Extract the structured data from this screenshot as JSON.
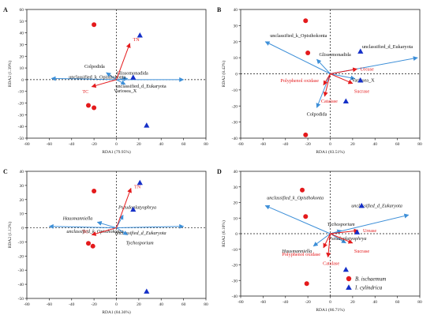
{
  "chart_data": [
    {
      "type": "scatter",
      "panel_label": "A",
      "xlabel": "RDA1 (79.95%)",
      "ylabel": "RDA2 (1.39%)",
      "xlim": [
        -80,
        80
      ],
      "ylim": [
        -50,
        60
      ],
      "xticks": [
        -80,
        -60,
        -40,
        -20,
        0,
        20,
        40,
        60,
        80
      ],
      "yticks": [
        -50,
        -40,
        -30,
        -20,
        -10,
        0,
        10,
        20,
        30,
        40,
        50,
        60
      ],
      "italic_species": false,
      "species_arrows": [
        {
          "label": "Colpodida",
          "x": -9,
          "y": 6
        },
        {
          "label": "Glissomonadida",
          "x": 10,
          "y": 1
        },
        {
          "label": "unclassified_k_Opisthokonta",
          "x": -58,
          "y": 1
        },
        {
          "label": "unclassified_d_Eukaryota",
          "x": 60,
          "y": 0
        },
        {
          "label": "Variosea_X",
          "x": 8,
          "y": -4
        }
      ],
      "env_arrows": [
        {
          "label": "TN",
          "x": 12,
          "y": 31
        },
        {
          "label": "TC",
          "x": -22,
          "y": -6
        }
      ],
      "sites": [
        {
          "group": "B. ischaemum",
          "x": -20,
          "y": 47
        },
        {
          "group": "B. ischaemum",
          "x": -25,
          "y": -22
        },
        {
          "group": "B. ischaemum",
          "x": -20,
          "y": -24
        },
        {
          "group": "I. cylindrica",
          "x": 21,
          "y": 38
        },
        {
          "group": "I. cylindrica",
          "x": 15,
          "y": 2
        },
        {
          "group": "I. cylindrica",
          "x": 27,
          "y": -39
        }
      ]
    },
    {
      "type": "scatter",
      "panel_label": "B",
      "xlabel": "RDA1 (83.51%)",
      "ylabel": "RDA2 (8.42%)",
      "xlim": [
        -80,
        80
      ],
      "ylim": [
        -40,
        40
      ],
      "xticks": [
        -80,
        -60,
        -40,
        -20,
        0,
        20,
        40,
        60,
        80
      ],
      "yticks": [
        -40,
        -30,
        -20,
        -10,
        0,
        10,
        20,
        30,
        40
      ],
      "italic_species": false,
      "species_arrows": [
        {
          "label": "unclassified_k_Opisthokonta",
          "x": -58,
          "y": 20
        },
        {
          "label": "Glissomonadida",
          "x": -12,
          "y": 9
        },
        {
          "label": "unclassified_d_Eukaryota",
          "x": 78,
          "y": 10
        },
        {
          "label": "Variosea_X",
          "x": 22,
          "y": -3
        },
        {
          "label": "Colpodida",
          "x": -12,
          "y": -21
        }
      ],
      "env_arrows": [
        {
          "label": "Urease",
          "x": 24,
          "y": 3
        },
        {
          "label": "Polyphenol oxidase",
          "x": -6,
          "y": -7
        },
        {
          "label": "Catalase",
          "x": -5,
          "y": -14
        },
        {
          "label": "Sucrase",
          "x": 20,
          "y": -6
        }
      ],
      "sites": [
        {
          "group": "B. ischaemum",
          "x": -22,
          "y": 33
        },
        {
          "group": "B. ischaemum",
          "x": -20,
          "y": 13
        },
        {
          "group": "B. ischaemum",
          "x": -22,
          "y": -38
        },
        {
          "group": "I. cylindrica",
          "x": 27,
          "y": 14
        },
        {
          "group": "I. cylindrica",
          "x": 27,
          "y": -4
        },
        {
          "group": "I. cylindrica",
          "x": 14,
          "y": -17
        }
      ]
    },
    {
      "type": "scatter",
      "panel_label": "C",
      "xlabel": "RDA1 (84.36%)",
      "ylabel": "RDA2 (1.12%)",
      "xlim": [
        -80,
        80
      ],
      "ylim": [
        -50,
        40
      ],
      "xticks": [
        -80,
        -60,
        -40,
        -20,
        0,
        20,
        40,
        60,
        80
      ],
      "yticks": [
        -50,
        -40,
        -30,
        -20,
        -10,
        0,
        10,
        20,
        30,
        40
      ],
      "italic_species": true,
      "species_arrows": [
        {
          "label": "Pseudoplatyophrya",
          "x": 6,
          "y": 9
        },
        {
          "label": "Hausmanniella",
          "x": -17,
          "y": 4
        },
        {
          "label": "unclassified_k_Opisthokonta",
          "x": -60,
          "y": 1
        },
        {
          "label": "unclassified_d_Eukaryota",
          "x": 60,
          "y": 1
        },
        {
          "label": "Tychosporium",
          "x": 10,
          "y": -5
        }
      ],
      "env_arrows": [
        {
          "label": "TN",
          "x": 13,
          "y": 28
        },
        {
          "label": "TC",
          "x": -22,
          "y": -5
        }
      ],
      "sites": [
        {
          "group": "B. ischaemum",
          "x": -20,
          "y": 26
        },
        {
          "group": "B. ischaemum",
          "x": -25,
          "y": -11
        },
        {
          "group": "B. ischaemum",
          "x": -21,
          "y": -13
        },
        {
          "group": "I. cylindrica",
          "x": 21,
          "y": 32
        },
        {
          "group": "I. cylindrica",
          "x": 15,
          "y": 13
        },
        {
          "group": "I. cylindrica",
          "x": 27,
          "y": -45
        }
      ]
    },
    {
      "type": "scatter",
      "panel_label": "D",
      "xlabel": "RDA1 (86.71%)",
      "ylabel": "RDA2 (6.10%)",
      "xlim": [
        -80,
        80
      ],
      "ylim": [
        -40,
        40
      ],
      "xticks": [
        -80,
        -60,
        -40,
        -20,
        0,
        20,
        40,
        60,
        80
      ],
      "yticks": [
        -40,
        -30,
        -20,
        -10,
        0,
        10,
        20,
        30,
        40
      ],
      "italic_species": true,
      "species_arrows": [
        {
          "label": "unclassified_k_Opisthokonta",
          "x": -58,
          "y": 18
        },
        {
          "label": "unclassified_d_Eukaryota",
          "x": 70,
          "y": 12
        },
        {
          "label": "Tychosporium",
          "x": 10,
          "y": 2
        },
        {
          "label": "Hausmanniella",
          "x": -15,
          "y": -8
        },
        {
          "label": "Pseudoplatyophrya",
          "x": 14,
          "y": -6
        }
      ],
      "env_arrows": [
        {
          "label": "Urease",
          "x": 25,
          "y": 2
        },
        {
          "label": "Polyphenol oxidase",
          "x": -6,
          "y": -9
        },
        {
          "label": "Catalase",
          "x": -2,
          "y": -15
        },
        {
          "label": "Sucrase",
          "x": 20,
          "y": -6
        }
      ],
      "sites": [
        {
          "group": "B. ischaemum",
          "x": -25,
          "y": 28
        },
        {
          "group": "B. ischaemum",
          "x": -22,
          "y": 11
        },
        {
          "group": "B. ischaemum",
          "x": -21,
          "y": -32
        },
        {
          "group": "I. cylindrica",
          "x": 28,
          "y": 18
        },
        {
          "group": "I. cylindrica",
          "x": 24,
          "y": 1
        },
        {
          "group": "I. cylindrica",
          "x": 14,
          "y": -23
        }
      ]
    }
  ],
  "legend": {
    "placement": "bottom-right",
    "items": [
      {
        "label": "B. ischaemum",
        "marker": "circle",
        "color": "#e41a1c"
      },
      {
        "label": "I. cylindrica",
        "marker": "triangle",
        "color": "#1530c8"
      }
    ]
  },
  "colors": {
    "species_arrow": "#3d8fd8",
    "env_arrow": "#e41a1c",
    "env_label": "#e41a1c",
    "species_label": "#111111",
    "reference_line": "#111111"
  }
}
